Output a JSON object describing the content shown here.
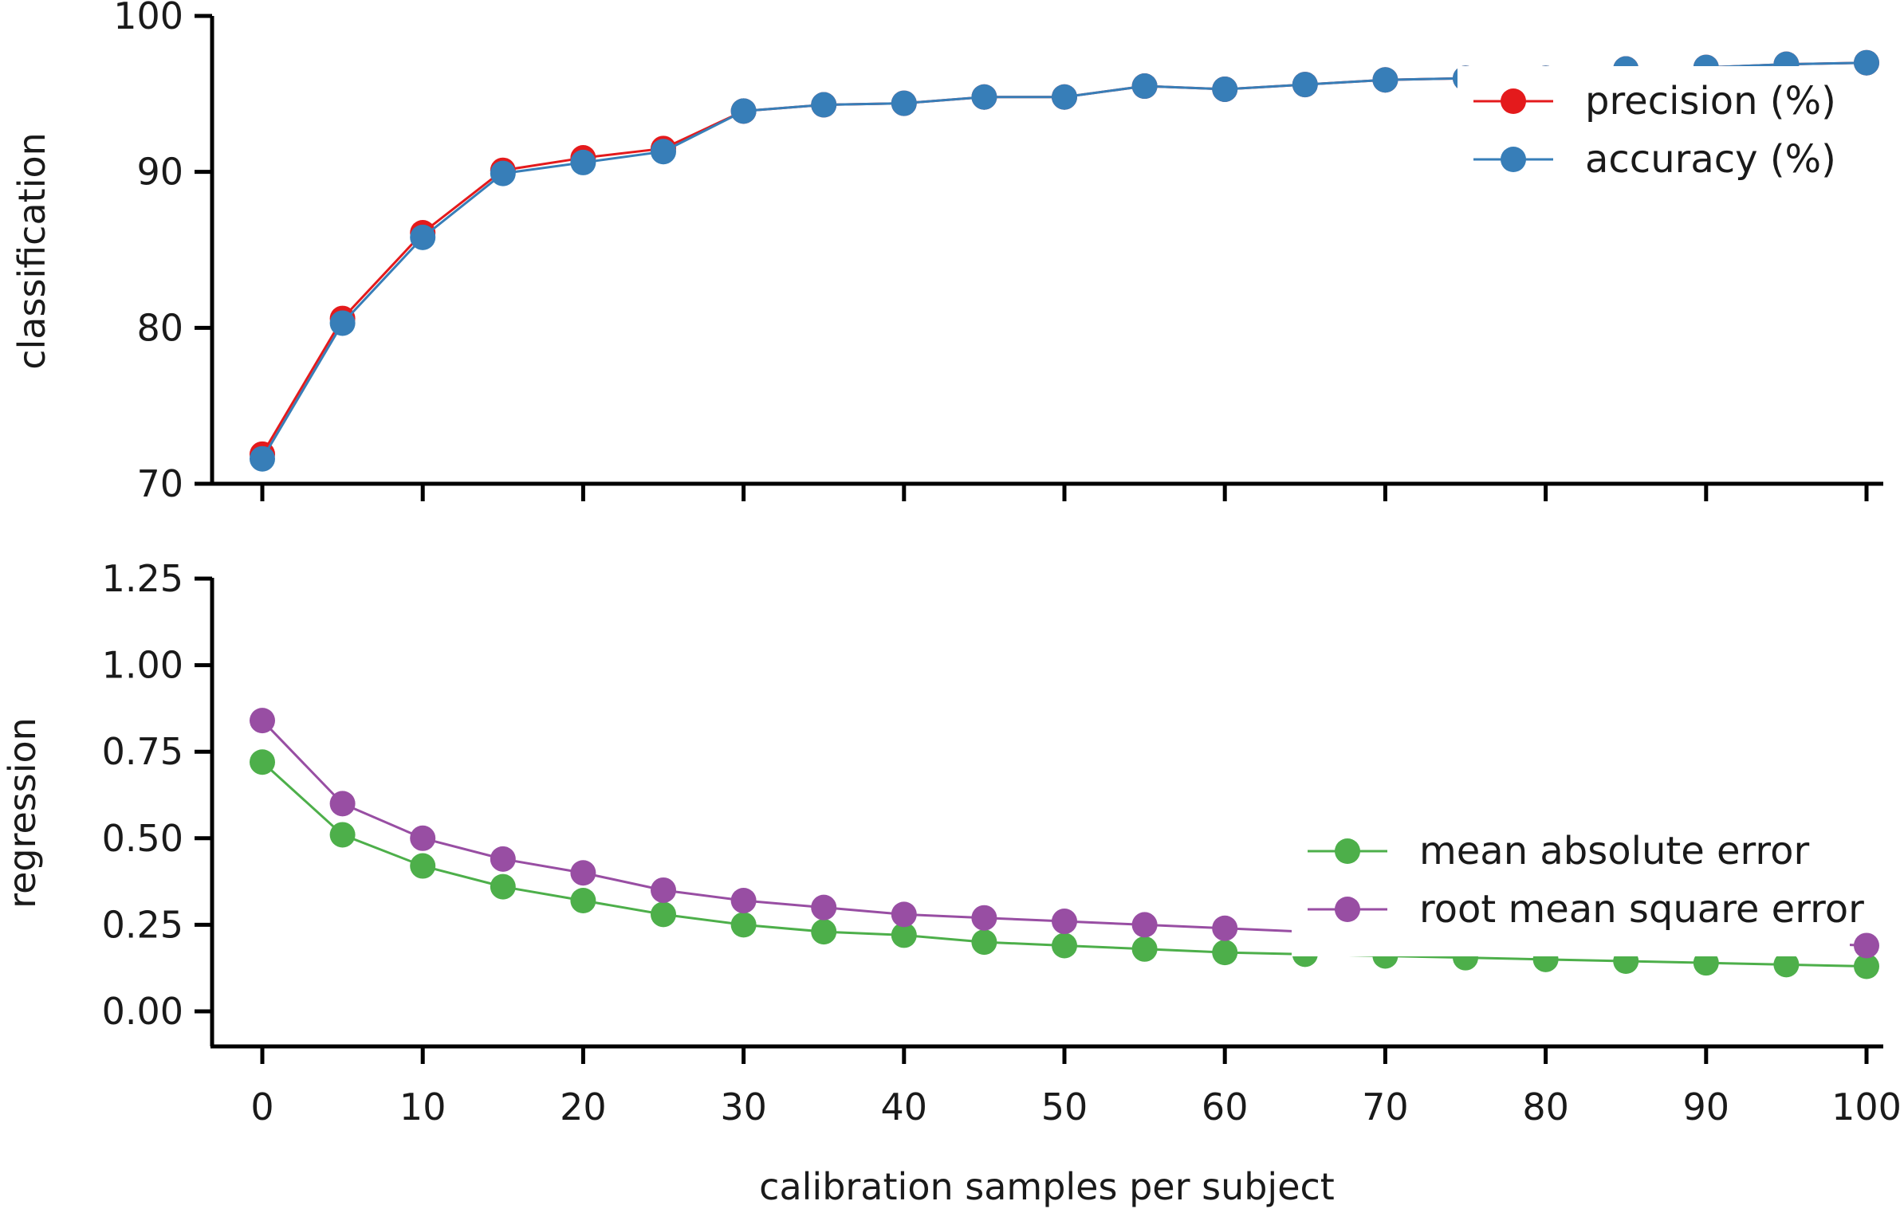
{
  "chart_data": [
    {
      "type": "line",
      "panel": "top",
      "xlabel": "",
      "ylabel": "classification",
      "xlim": [
        -3,
        101
      ],
      "ylim": [
        70,
        100
      ],
      "yticks": [
        70,
        80,
        90,
        100
      ],
      "xticks": [
        0,
        10,
        20,
        30,
        40,
        50,
        60,
        70,
        80,
        90,
        100
      ],
      "show_xtick_labels": false,
      "grid": false,
      "legend_position": "upper-right",
      "x": [
        0,
        5,
        10,
        15,
        20,
        25,
        30,
        35,
        40,
        45,
        50,
        55,
        60,
        65,
        70,
        75,
        80,
        85,
        90,
        95,
        100
      ],
      "series": [
        {
          "name": "precision (%)",
          "color": "#e41a1c",
          "values": [
            71.9,
            80.6,
            86.1,
            90.1,
            90.9,
            91.5,
            93.9,
            94.3,
            94.4,
            94.8,
            94.8,
            95.5,
            95.3,
            95.6,
            95.9,
            96.0,
            96.0,
            96.6,
            96.7,
            96.9,
            97.0
          ]
        },
        {
          "name": "accuracy (%)",
          "color": "#377eb8",
          "values": [
            71.6,
            80.3,
            85.8,
            89.9,
            90.6,
            91.3,
            93.9,
            94.3,
            94.4,
            94.8,
            94.8,
            95.5,
            95.3,
            95.6,
            95.9,
            96.0,
            96.0,
            96.6,
            96.7,
            96.9,
            97.0
          ]
        }
      ]
    },
    {
      "type": "line",
      "panel": "bottom",
      "xlabel": "calibration samples per subject",
      "ylabel": "regression",
      "xlim": [
        -3,
        101
      ],
      "ylim": [
        -0.1,
        1.25
      ],
      "yticks": [
        "0.00",
        "0.25",
        "0.50",
        "0.75",
        "1.00",
        "1.25"
      ],
      "xticks": [
        0,
        10,
        20,
        30,
        40,
        50,
        60,
        70,
        80,
        90,
        100
      ],
      "show_xtick_labels": true,
      "grid": false,
      "legend_position": "center-right",
      "x": [
        0,
        5,
        10,
        15,
        20,
        25,
        30,
        35,
        40,
        45,
        50,
        55,
        60,
        65,
        70,
        75,
        80,
        85,
        90,
        95,
        100
      ],
      "series": [
        {
          "name": "mean absolute error",
          "color": "#4daf4a",
          "values": [
            0.72,
            0.51,
            0.42,
            0.36,
            0.32,
            0.28,
            0.25,
            0.23,
            0.22,
            0.2,
            0.19,
            0.18,
            0.17,
            0.165,
            0.16,
            0.155,
            0.15,
            0.145,
            0.14,
            0.135,
            0.13
          ]
        },
        {
          "name": "root mean square error",
          "color": "#984ea3",
          "values": [
            0.84,
            0.6,
            0.5,
            0.44,
            0.4,
            0.35,
            0.32,
            0.3,
            0.28,
            0.27,
            0.26,
            0.25,
            0.24,
            0.23,
            0.225,
            0.22,
            0.215,
            0.21,
            0.205,
            0.2,
            0.19
          ]
        }
      ]
    }
  ]
}
